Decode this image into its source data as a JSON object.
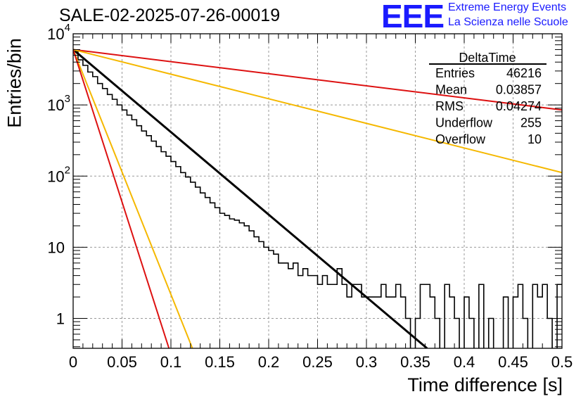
{
  "header": {
    "title": "SALE-02-2025-07-26-00019",
    "logo_text": "EEE",
    "org_line1": "Extreme Energy Events",
    "org_line2": "La Scienza nelle Scuole",
    "logo_color": "#1a1aff"
  },
  "stats_box": {
    "title": "DeltaTime",
    "rows": [
      {
        "label": "Entries",
        "value": "46216"
      },
      {
        "label": "Mean",
        "value": "0.03857"
      },
      {
        "label": "RMS",
        "value": "0.04274"
      },
      {
        "label": "Underflow",
        "value": "255"
      },
      {
        "label": "Overflow",
        "value": "10"
      }
    ]
  },
  "chart_data": {
    "type": "line",
    "title": "SALE-02-2025-07-26-00019",
    "xlabel": "Time difference [s]",
    "ylabel": "Entries/bin",
    "xlim": [
      0,
      0.5
    ],
    "ylim": [
      0.38,
      10000
    ],
    "yscale": "log",
    "grid": true,
    "x_ticks": [
      "0",
      "0.05",
      "0.1",
      "0.15",
      "0.2",
      "0.25",
      "0.3",
      "0.35",
      "0.4",
      "0.45",
      "0.5"
    ],
    "y_ticks": [
      {
        "value": 1,
        "label": "1"
      },
      {
        "value": 10,
        "label": "10"
      },
      {
        "value": 100,
        "label": "10",
        "exp": "2"
      },
      {
        "value": 1000,
        "label": "10",
        "exp": "3"
      },
      {
        "value": 10000,
        "label": "10",
        "exp": "4"
      }
    ],
    "histogram": {
      "name": "DeltaTime",
      "color": "#000000",
      "bin_width": 0.005,
      "counts": [
        5600,
        4300,
        3600,
        2900,
        2500,
        2000,
        1700,
        1400,
        1200,
        1000,
        850,
        720,
        620,
        510,
        430,
        370,
        310,
        260,
        220,
        190,
        160,
        136,
        112,
        97,
        82,
        70,
        58,
        50,
        42,
        36,
        30,
        28,
        25,
        24,
        22,
        20,
        17,
        14,
        12,
        10,
        9,
        8,
        6,
        6,
        5,
        6,
        4,
        5,
        4,
        4,
        3,
        4,
        3,
        3,
        5,
        3,
        2,
        3,
        3,
        2,
        2,
        2,
        2,
        3,
        2,
        2,
        3,
        2,
        1,
        0.3,
        1,
        3,
        3,
        2,
        1,
        0.3,
        3,
        2,
        1,
        0.3,
        2,
        1,
        0.3,
        3,
        0.3,
        1,
        0.3,
        0.3,
        2,
        0.3,
        2,
        3,
        1,
        0.3,
        3,
        2,
        3,
        1,
        0.3,
        3
      ]
    },
    "fits": [
      {
        "color": "#000000",
        "x": [
          0,
          0.362
        ],
        "y": [
          6000,
          0.38
        ]
      },
      {
        "color": "#dd1111",
        "x": [
          0,
          0.5
        ],
        "y": [
          6000,
          850
        ]
      },
      {
        "color": "#f5b800",
        "x": [
          0,
          0.5
        ],
        "y": [
          6000,
          112
        ]
      },
      {
        "color": "#f5b800",
        "x": [
          0,
          0.122
        ],
        "y": [
          6000,
          0.38
        ]
      },
      {
        "color": "#dd1111",
        "x": [
          0,
          0.098
        ],
        "y": [
          6000,
          0.38
        ]
      }
    ]
  }
}
